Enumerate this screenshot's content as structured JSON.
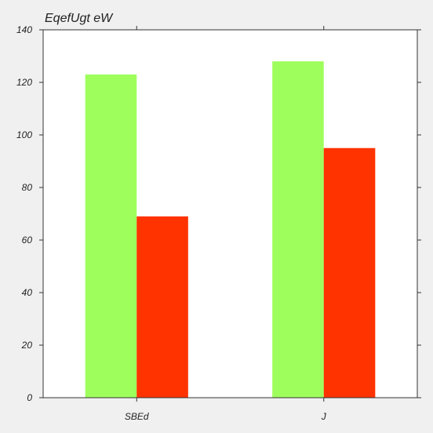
{
  "chart_data": {
    "type": "bar",
    "title": "EqefUgt  eW",
    "xlabel": "",
    "ylabel": "",
    "categories": [
      "SBEd",
      "J"
    ],
    "series": [
      {
        "values": [
          123,
          128
        ],
        "color": "#9eff5c"
      },
      {
        "values": [
          69,
          95
        ],
        "color": "#ff3300"
      }
    ],
    "ylim": [
      0,
      140
    ],
    "yticks": [
      0,
      20,
      40,
      60,
      80,
      100,
      120,
      140
    ],
    "grid": false,
    "legend": "none",
    "colors": {
      "plot_background": "#ffffff",
      "figure_background": "#f0f0f0",
      "axis": "#333333"
    }
  }
}
